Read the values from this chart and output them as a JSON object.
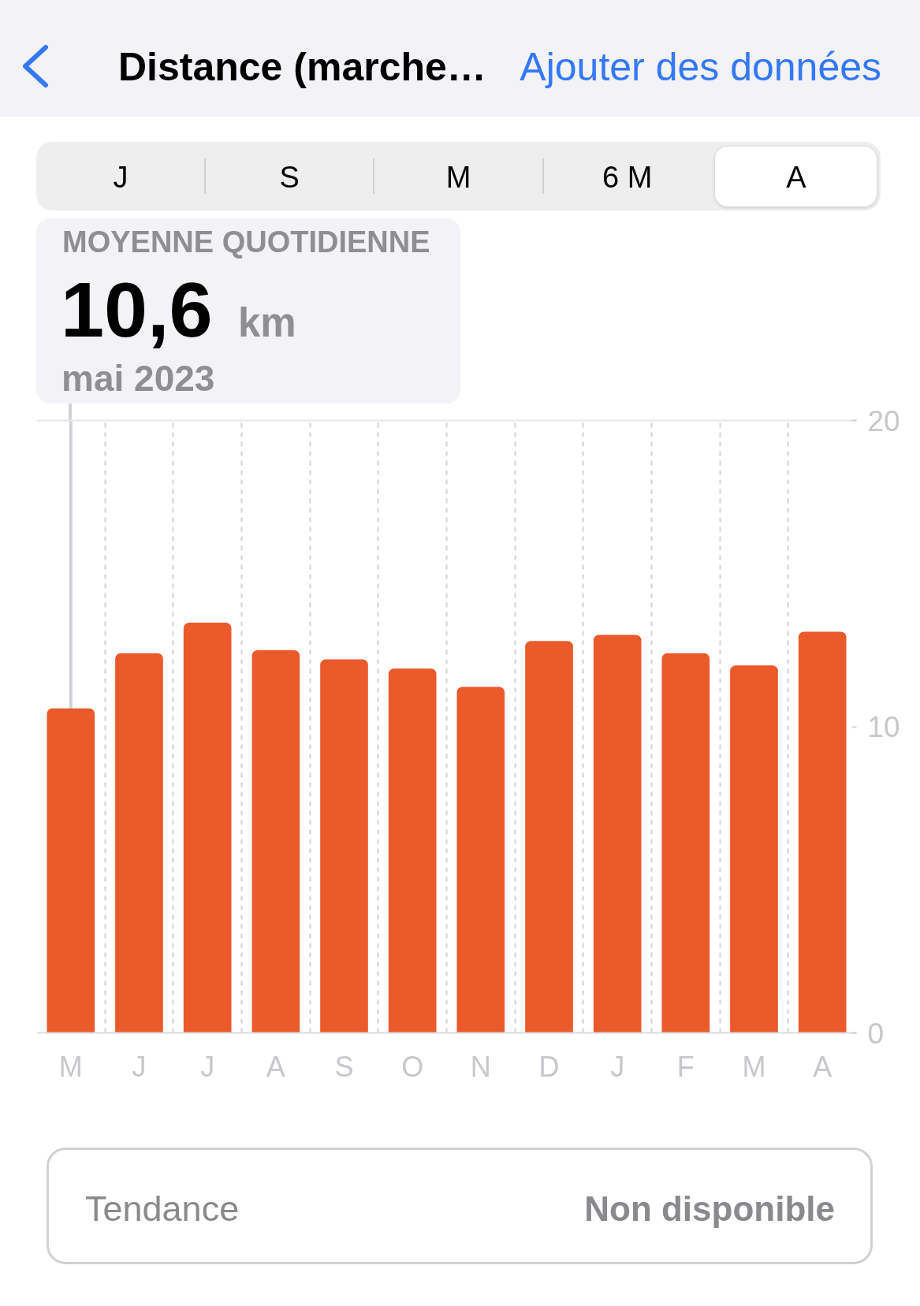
{
  "chart_data": {
    "type": "bar",
    "title": "Distance (marche…",
    "categories": [
      "M",
      "J",
      "J",
      "A",
      "S",
      "O",
      "N",
      "D",
      "J",
      "F",
      "M",
      "A"
    ],
    "values": [
      10.6,
      12.4,
      13.4,
      12.5,
      12.2,
      11.9,
      11.3,
      12.8,
      13.0,
      12.4,
      12.0,
      13.1
    ],
    "color": "#ea5a2b",
    "ylim": [
      0,
      20
    ],
    "yticks": [
      0,
      10,
      20
    ],
    "grid": "x",
    "annotations": [
      "Ajouter des données",
      "J",
      "S",
      "M",
      "6 M",
      "A",
      "MOYENNE QUOTIDIENNE",
      {
        "text": "10,6",
        "x": "M",
        "y": 10.6
      },
      "km",
      "mai 2023",
      "Tendance",
      "Non disponible"
    ]
  }
}
